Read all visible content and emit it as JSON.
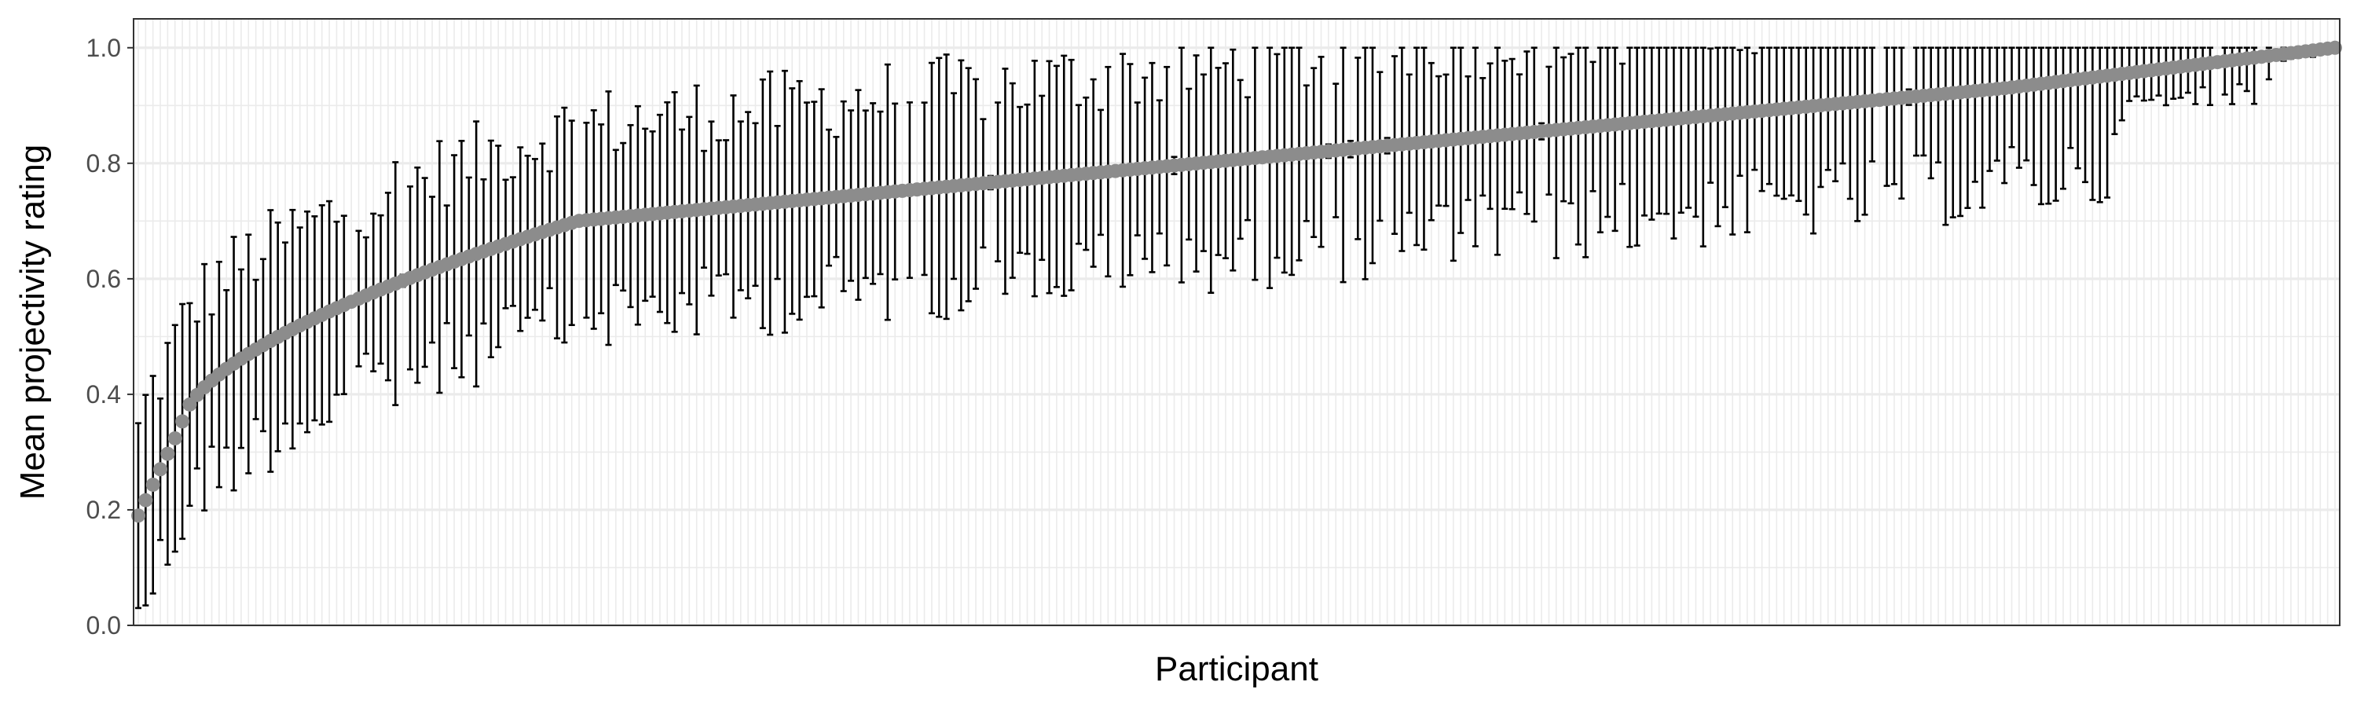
{
  "chart_data": {
    "type": "scatter",
    "title": "",
    "xlabel": "Participant",
    "ylabel": "Mean projectivity rating",
    "ylim": [
      0,
      1.05
    ],
    "y_ticks": [
      0.0,
      0.2,
      0.4,
      0.6,
      0.8,
      1.0
    ],
    "y_tick_labels": [
      "0.0",
      "0.2",
      "0.4",
      "0.6",
      "0.8",
      "1.0"
    ],
    "x_tick_labels": "none",
    "grid": true,
    "legend": "none",
    "error_bars": "vertical",
    "participants": 300,
    "mean_range": [
      0.19,
      1.0
    ],
    "colors": {
      "background": "#ffffff",
      "grid_major": "#ebebeb",
      "grid_minor": "#f5f5f5",
      "panel_border": "#333333",
      "point": "#8c8c8c",
      "error_bar": "#000000"
    }
  }
}
